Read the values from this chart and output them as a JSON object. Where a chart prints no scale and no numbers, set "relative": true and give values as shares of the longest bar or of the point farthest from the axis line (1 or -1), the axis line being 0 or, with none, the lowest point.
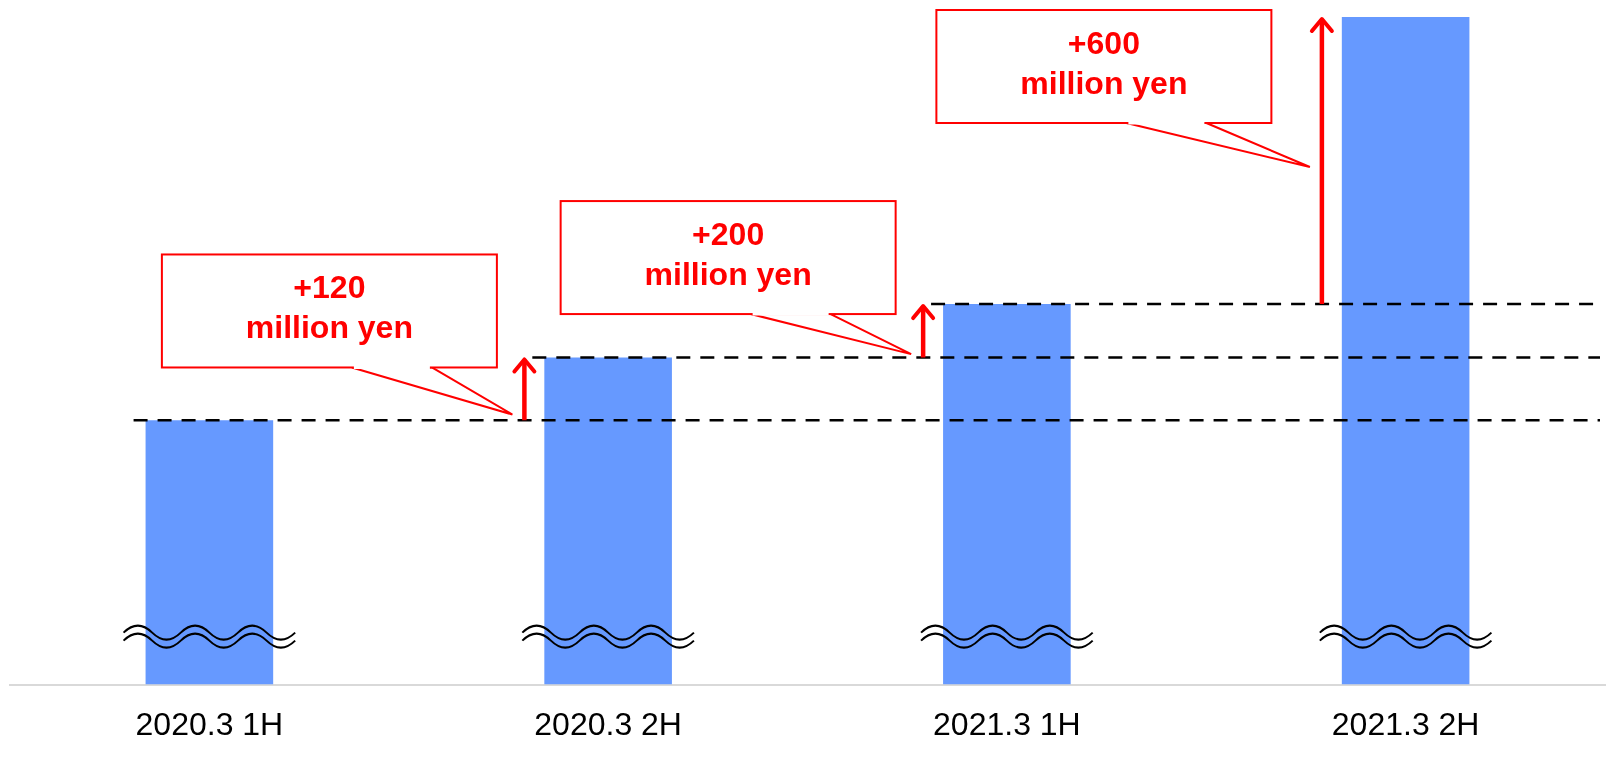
{
  "chart_data": {
    "type": "bar",
    "relative": true,
    "categories": [
      "2020.3 1H",
      "2020.3 2H",
      "2021.3 1H",
      "2021.3 2H"
    ],
    "values": [
      0.396,
      0.49,
      0.57,
      1
    ],
    "color": "#6699ff",
    "ref_lines": [
      {
        "axis": "y",
        "value": 0.396,
        "color": "#000000",
        "line_style": "dashed"
      },
      {
        "axis": "y",
        "value": 0.49,
        "color": "#000000",
        "line_style": "dashed"
      },
      {
        "axis": "y",
        "value": 0.57,
        "color": "#000000",
        "line_style": "dashed"
      }
    ],
    "annotations": [
      "+120 million yen",
      "+200 million yen",
      "+600 million yen"
    ],
    "grid": false,
    "legend": false
  }
}
